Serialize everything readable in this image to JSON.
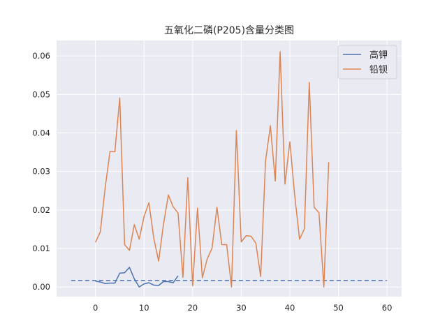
{
  "chart_data": {
    "type": "line",
    "title": "五氧化二磷(P205)含量分类图",
    "xlabel": "",
    "ylabel": "",
    "xlim": [
      -8,
      63
    ],
    "ylim": [
      -0.0025,
      0.064
    ],
    "xticks": [
      0,
      10,
      20,
      30,
      40,
      50,
      60
    ],
    "yticks": [
      0.0,
      0.01,
      0.02,
      0.03,
      0.04,
      0.05,
      0.06
    ],
    "ytick_labels": [
      "0.00",
      "0.01",
      "0.02",
      "0.03",
      "0.04",
      "0.05",
      "0.06"
    ],
    "grid": true,
    "legend_position": "top-right",
    "background": "#eaeaf2",
    "series": [
      {
        "name": "高钾",
        "color": "#4c72b0",
        "x": [
          0,
          1,
          2,
          3,
          4,
          5,
          6,
          7,
          8,
          9,
          10,
          11,
          12,
          13,
          14,
          15,
          16,
          17
        ],
        "values": [
          0.0015,
          0.0013,
          0.0009,
          0.001,
          0.001,
          0.0036,
          0.0037,
          0.0051,
          0.0021,
          0.0,
          0.0008,
          0.0011,
          0.0005,
          0.0004,
          0.0014,
          0.0014,
          0.0011,
          0.0029
        ]
      },
      {
        "name": "铅钡",
        "color": "#dd8452",
        "x": [
          0,
          1,
          2,
          3,
          4,
          5,
          6,
          7,
          8,
          9,
          10,
          11,
          12,
          13,
          14,
          15,
          16,
          17,
          18,
          19,
          20,
          21,
          22,
          23,
          24,
          25,
          26,
          27,
          28,
          29,
          30,
          31,
          32,
          33,
          34,
          35,
          36,
          37,
          38,
          39,
          40,
          41,
          42,
          43,
          44,
          45,
          46,
          47,
          48
        ],
        "values": [
          0.0116,
          0.0143,
          0.0258,
          0.0352,
          0.0351,
          0.0491,
          0.011,
          0.0095,
          0.0162,
          0.0124,
          0.0183,
          0.0219,
          0.0127,
          0.0067,
          0.0163,
          0.0239,
          0.0208,
          0.0192,
          0.0025,
          0.0284,
          0.0003,
          0.0205,
          0.0024,
          0.0073,
          0.0101,
          0.0207,
          0.011,
          0.011,
          0.0,
          0.0406,
          0.0117,
          0.0133,
          0.0132,
          0.0114,
          0.0027,
          0.0327,
          0.0419,
          0.0275,
          0.0611,
          0.0267,
          0.0377,
          0.0238,
          0.0124,
          0.0151,
          0.0531,
          0.0207,
          0.0193,
          0.0,
          0.0324
        ]
      }
    ],
    "reference_line": {
      "y": 0.0017,
      "x_start": -5,
      "x_end": 60,
      "color": "#4c72b0",
      "style": "dashed"
    }
  }
}
